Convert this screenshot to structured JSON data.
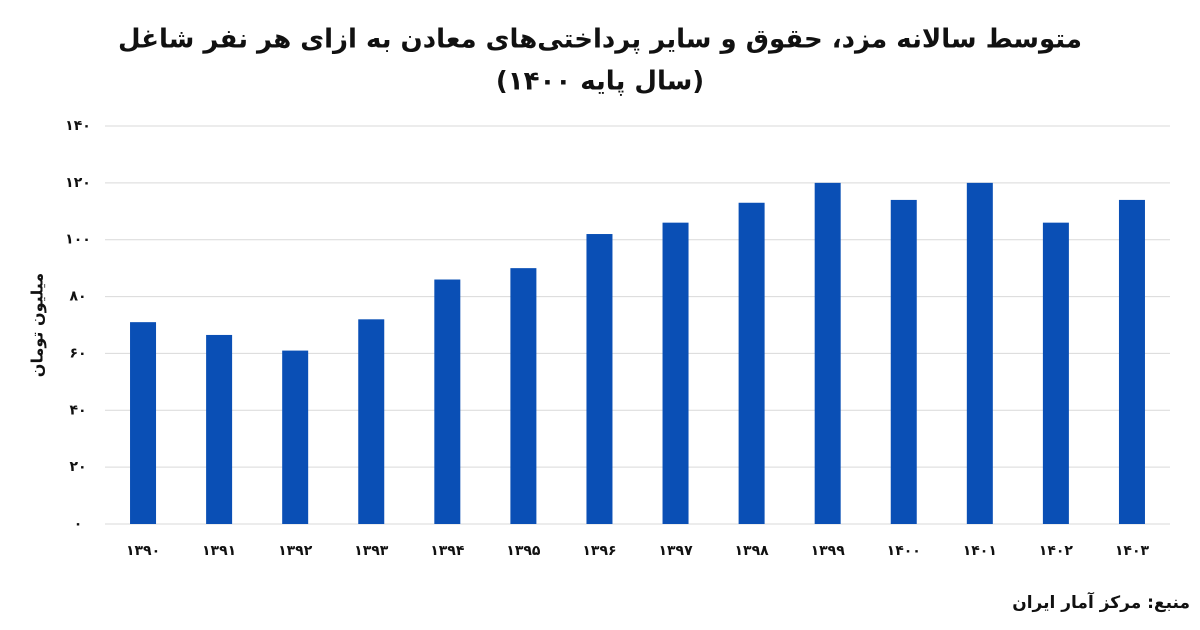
{
  "chart_data": {
    "type": "bar",
    "title": "متوسط سالانه مزد، حقوق و سایر پرداختی‌های معادن به ازای هر نفر شاغل",
    "subtitle": "(سال پایه ۱۴۰۰)",
    "y_label": "میلیون تومان",
    "source": "منبع: مرکز آمار ایران",
    "categories": [
      "۱۳۹۰",
      "۱۳۹۱",
      "۱۳۹۲",
      "۱۳۹۳",
      "۱۳۹۴",
      "۱۳۹۵",
      "۱۳۹۶",
      "۱۳۹۷",
      "۱۳۹۸",
      "۱۳۹۹",
      "۱۴۰۰",
      "۱۴۰۱",
      "۱۴۰۲",
      "۱۴۰۳"
    ],
    "values": [
      71,
      66.5,
      61,
      72,
      86,
      90,
      102,
      106,
      113,
      120,
      114,
      120,
      106,
      114
    ],
    "color": "#0a4fb5",
    "ylim": [
      0,
      140
    ],
    "yticks": [
      {
        "value": 0,
        "label": "۰"
      },
      {
        "value": 20,
        "label": "۲۰"
      },
      {
        "value": 40,
        "label": "۴۰"
      },
      {
        "value": 60,
        "label": "۶۰"
      },
      {
        "value": 80,
        "label": "۸۰"
      },
      {
        "value": 100,
        "label": "۱۰۰"
      },
      {
        "value": 120,
        "label": "۱۲۰"
      },
      {
        "value": 140,
        "label": "۱۴۰"
      }
    ],
    "grid": true
  }
}
